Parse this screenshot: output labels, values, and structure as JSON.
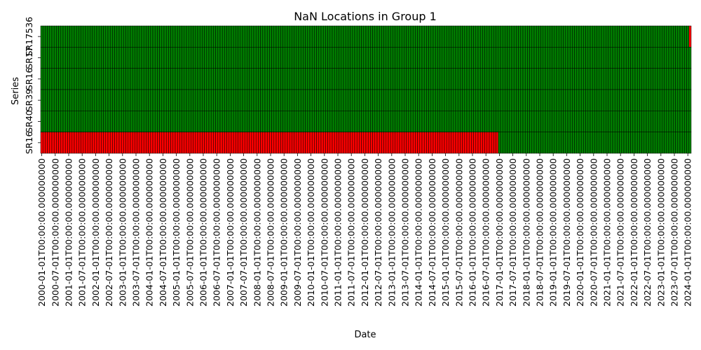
{
  "chart_data": {
    "type": "heatmap",
    "title": "NaN Locations in Group 1",
    "xlabel": "Date",
    "ylabel": "Series",
    "x_start": "2000-01",
    "x_end": "2024-02",
    "x_freq": "monthly",
    "x_tick_every_months": 6,
    "x_tick_labels": [
      "2000-01-01T00:00:00.000000000",
      "2000-07-01T00:00:00.000000000",
      "2001-01-01T00:00:00.000000000",
      "2001-07-01T00:00:00.000000000",
      "2002-01-01T00:00:00.000000000",
      "2002-07-01T00:00:00.000000000",
      "2003-01-01T00:00:00.000000000",
      "2003-07-01T00:00:00.000000000",
      "2004-01-01T00:00:00.000000000",
      "2004-07-01T00:00:00.000000000",
      "2005-01-01T00:00:00.000000000",
      "2005-07-01T00:00:00.000000000",
      "2006-01-01T00:00:00.000000000",
      "2006-07-01T00:00:00.000000000",
      "2007-01-01T00:00:00.000000000",
      "2007-07-01T00:00:00.000000000",
      "2008-01-01T00:00:00.000000000",
      "2008-07-01T00:00:00.000000000",
      "2009-01-01T00:00:00.000000000",
      "2009-07-01T00:00:00.000000000",
      "2010-01-01T00:00:00.000000000",
      "2010-07-01T00:00:00.000000000",
      "2011-01-01T00:00:00.000000000",
      "2011-07-01T00:00:00.000000000",
      "2012-01-01T00:00:00.000000000",
      "2012-07-01T00:00:00.000000000",
      "2013-01-01T00:00:00.000000000",
      "2013-07-01T00:00:00.000000000",
      "2014-01-01T00:00:00.000000000",
      "2014-07-01T00:00:00.000000000",
      "2015-01-01T00:00:00.000000000",
      "2015-07-01T00:00:00.000000000",
      "2016-01-01T00:00:00.000000000",
      "2016-07-01T00:00:00.000000000",
      "2017-01-01T00:00:00.000000000",
      "2017-07-01T00:00:00.000000000",
      "2018-01-01T00:00:00.000000000",
      "2018-07-01T00:00:00.000000000",
      "2019-01-01T00:00:00.000000000",
      "2019-07-01T00:00:00.000000000",
      "2020-01-01T00:00:00.000000000",
      "2020-07-01T00:00:00.000000000",
      "2021-01-01T00:00:00.000000000",
      "2021-07-01T00:00:00.000000000",
      "2022-01-01T00:00:00.000000000",
      "2022-07-01T00:00:00.000000000",
      "2023-01-01T00:00:00.000000000",
      "2023-07-01T00:00:00.000000000",
      "2024-01-01T00:00:00.000000000"
    ],
    "series": [
      {
        "name": "SR17536",
        "nan_periods": [
          [
            "2024-02",
            "2024-02"
          ]
        ]
      },
      {
        "name": "SR17",
        "nan_periods": []
      },
      {
        "name": "SR16",
        "nan_periods": []
      },
      {
        "name": "SR39",
        "nan_periods": []
      },
      {
        "name": "SR40",
        "nan_periods": []
      },
      {
        "name": "SR16",
        "nan_periods": [
          [
            "2000-01",
            "2016-12"
          ]
        ]
      }
    ],
    "y_tick_labels": [
      "SR17536",
      "SR17",
      "SR16",
      "SR39",
      "SR40",
      "SR16"
    ],
    "colors": {
      "present": "#008000",
      "nan": "#ff0000",
      "cell_edge": "#000000"
    },
    "grid": false,
    "legend": "none"
  }
}
